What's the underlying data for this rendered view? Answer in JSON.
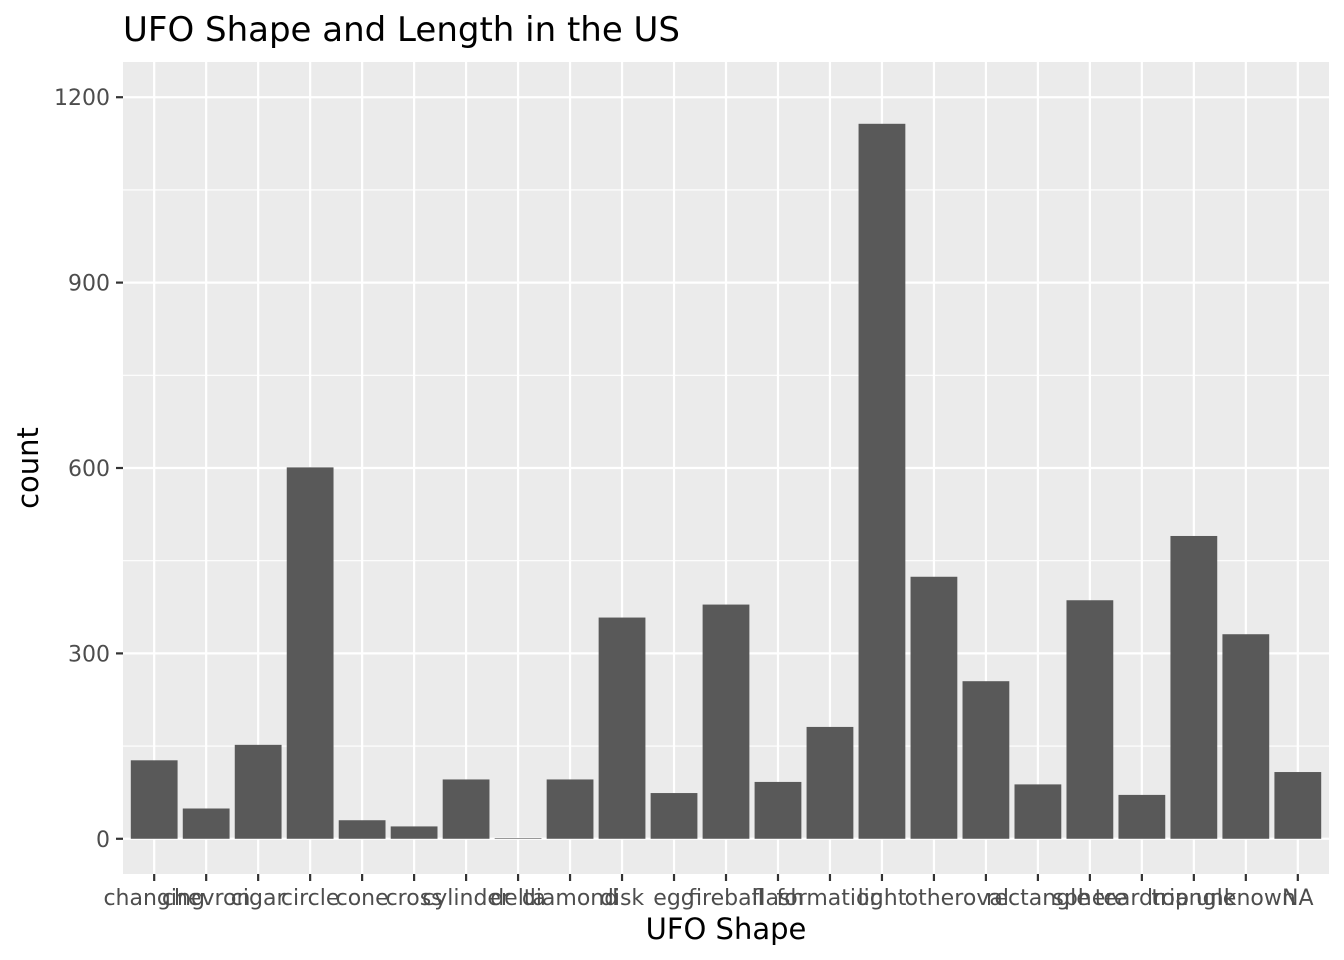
{
  "chart_data": {
    "type": "bar",
    "title": "UFO Shape and Length in the US",
    "xlabel": "UFO Shape",
    "ylabel": "count",
    "ylim": [
      -57,
      1257
    ],
    "yticks": [
      0,
      300,
      600,
      900,
      1200
    ],
    "grid": true,
    "panel_color": "#ebebeb",
    "bar_color": "#595959",
    "categories": [
      "changing",
      "chevron",
      "cigar",
      "circle",
      "cone",
      "cross",
      "cylinder",
      "delta",
      "diamond",
      "disk",
      "egg",
      "fireball",
      "flash",
      "formation",
      "light",
      "other",
      "oval",
      "rectangle",
      "sphere",
      "teardrop",
      "triangle",
      "unknown",
      "NA"
    ],
    "values": [
      127,
      49,
      152,
      601,
      30,
      20,
      96,
      1,
      96,
      358,
      74,
      379,
      92,
      181,
      1157,
      424,
      255,
      88,
      386,
      71,
      490,
      331,
      108
    ]
  }
}
